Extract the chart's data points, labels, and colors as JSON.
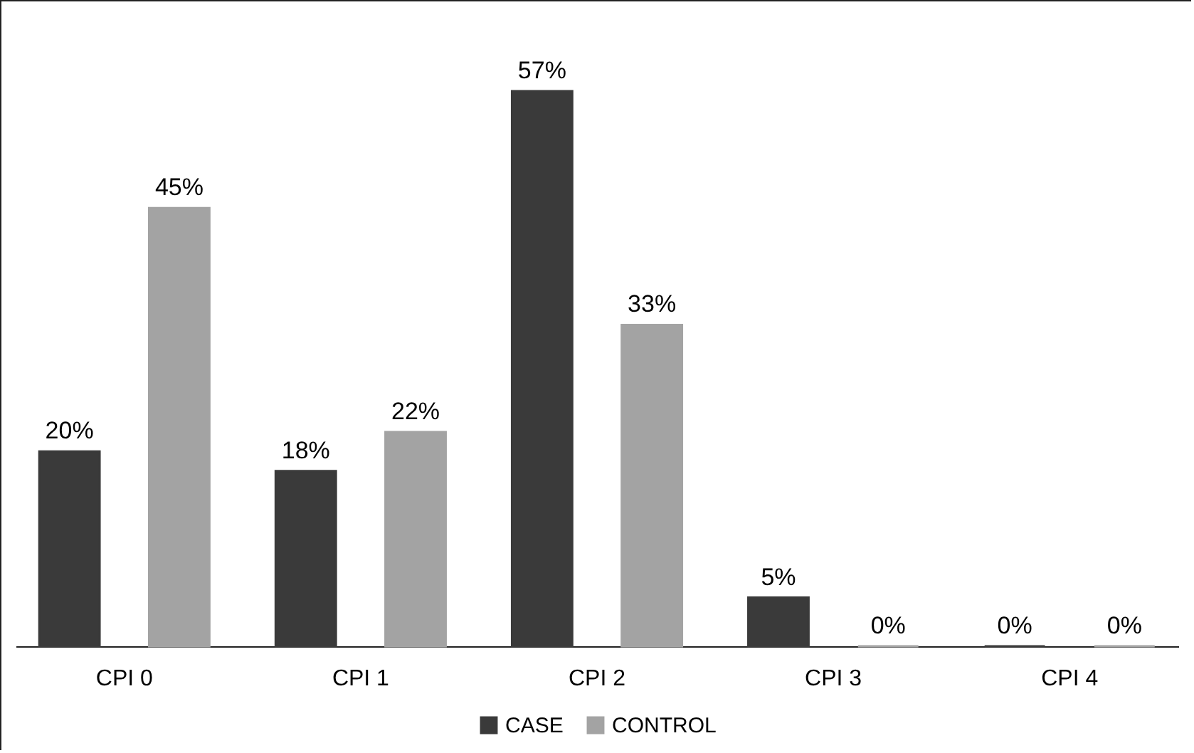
{
  "chart_data": {
    "type": "bar",
    "categories": [
      "CPI 0",
      "CPI 1",
      "CPI 2",
      "CPI 3",
      "CPI 4"
    ],
    "series": [
      {
        "name": "CASE",
        "color": "#3a3a3a",
        "values": [
          20,
          18,
          57,
          5,
          0
        ],
        "value_labels": [
          "20%",
          "18%",
          "57%",
          "5%",
          "0%"
        ]
      },
      {
        "name": "CONTROL",
        "color": "#a3a3a3",
        "values": [
          45,
          22,
          33,
          0,
          0
        ],
        "value_labels": [
          "45%",
          "22%",
          "33%",
          "0%",
          "0%"
        ]
      }
    ],
    "legend": "bottom"
  }
}
